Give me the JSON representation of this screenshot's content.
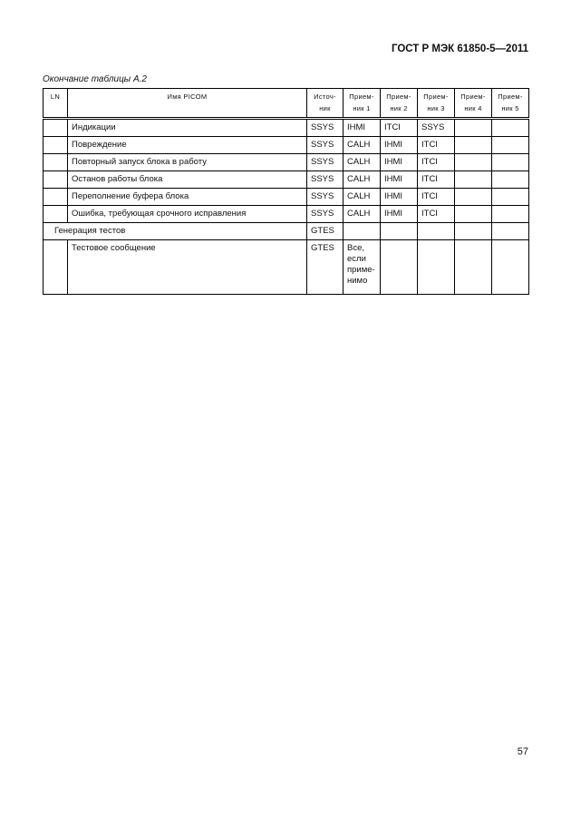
{
  "header": {
    "doc_id": "ГОСТ Р МЭК 61850-5—2011"
  },
  "caption": "Окончание таблицы А.2",
  "table": {
    "columns": [
      "LN",
      "Имя PICOM",
      "Источ-ник",
      "Прием-ник 1",
      "Прием-ник 2",
      "Прием-ник 3",
      "Прием-ник 4",
      "Прием-ник 5"
    ],
    "rows": [
      {
        "ln": "",
        "name": "Индикации",
        "src": "SSYS",
        "r": [
          "IHMI",
          "ITCI",
          "SSYS",
          "",
          ""
        ]
      },
      {
        "ln": "",
        "name": "Повреждение",
        "src": "SSYS",
        "r": [
          "CALH",
          "IHMI",
          "ITCI",
          "",
          ""
        ]
      },
      {
        "ln": "",
        "name": "Повторный запуск блока в работу",
        "src": "SSYS",
        "r": [
          "CALH",
          "IHMI",
          "ITCI",
          "",
          ""
        ]
      },
      {
        "ln": "",
        "name": "Останов работы блока",
        "src": "SSYS",
        "r": [
          "CALH",
          "IHMI",
          "ITCI",
          "",
          ""
        ]
      },
      {
        "ln": "",
        "name": "Переполнение буфера блока",
        "src": "SSYS",
        "r": [
          "CALH",
          "IHMI",
          "ITCI",
          "",
          ""
        ]
      },
      {
        "ln": "",
        "name": "Ошибка, требующая срочного исправления",
        "src": "SSYS",
        "r": [
          "CALH",
          "IHMI",
          "ITCI",
          "",
          ""
        ]
      },
      {
        "group": "Генерация тестов",
        "src": "GTES",
        "r": [
          "",
          "",
          "",
          "",
          ""
        ]
      },
      {
        "ln": "",
        "name": "Тестовое сообщение",
        "src": "GTES",
        "r": [
          "Все, если приме-нимо",
          "",
          "",
          "",
          ""
        ]
      }
    ]
  },
  "footer": {
    "page_number": "57"
  }
}
